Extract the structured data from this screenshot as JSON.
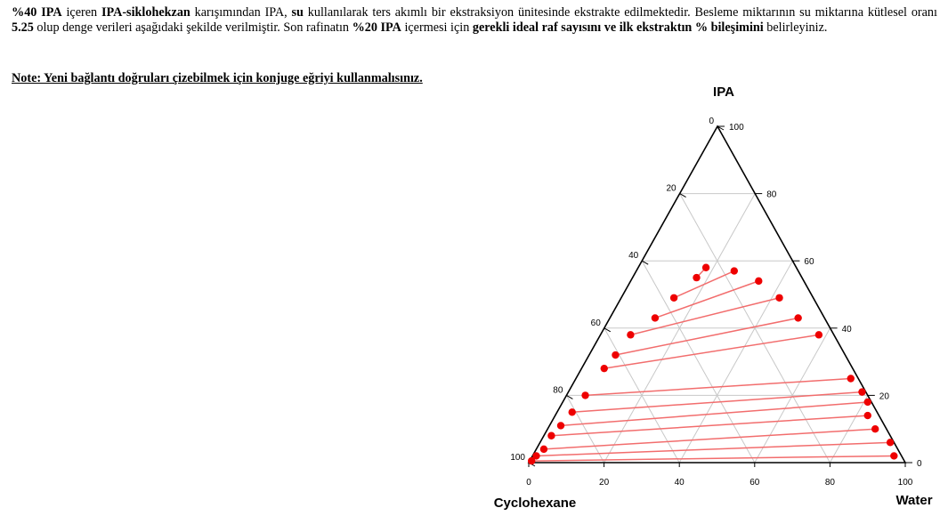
{
  "problem": {
    "s1_strong": "%40 IPA",
    "s2": " içeren ",
    "s3_strong": "IPA-siklohekzan",
    "s4": " karışımından IPA, ",
    "s5_strong": "su",
    "s6": " kullanılarak ters akımlı bir ekstraksiyon ünitesinde ekstrakte edilmektedir. Besleme miktarının su miktarına kütlesel oranı ",
    "s7_strong": "5.25",
    "s8": " olup denge verileri aşağıdaki şekilde verilmiştir. Son rafinatın ",
    "s9_strong": "%20 IPA",
    "s10": " içermesi için ",
    "s11_strong": "gerekli ideal raf sayısını ve ilk ekstraktın % bileşimini",
    "s12": " belirleyiniz."
  },
  "note": "Note: Yeni bağlantı doğruları çizebilmek için konjuge eğriyi kullanmalısınız.",
  "colors": {
    "tie_line": "#f26d6d",
    "point": "#ee0000",
    "grid": "#c8c8c8",
    "axis": "#000000"
  },
  "chart_data": {
    "type": "ternary",
    "components": [
      "IPA",
      "Cyclohexane",
      "Water"
    ],
    "vertex_labels": {
      "top": "IPA",
      "left": "Cyclohexane",
      "right": "Water"
    },
    "left_edge_ticks": [
      "0",
      "20",
      "40",
      "60",
      "80",
      "100"
    ],
    "right_edge_ticks": [
      "100",
      "80",
      "60",
      "40",
      "20",
      "0"
    ],
    "bottom_edge_ticks": [
      "0",
      "20",
      "40",
      "60",
      "80",
      "100"
    ],
    "tie_lines_description": "Each tie line connects a cyclohexane-rich raffinate point (left) to a water-rich extract point (right); values are mass % [IPA, Water]",
    "tie_lines": [
      {
        "raffinate": [
          0.5,
          0.5
        ],
        "extract": [
          2,
          96
        ]
      },
      {
        "raffinate": [
          2,
          1
        ],
        "extract": [
          6,
          93
        ]
      },
      {
        "raffinate": [
          4,
          2
        ],
        "extract": [
          10,
          87
        ]
      },
      {
        "raffinate": [
          8,
          2
        ],
        "extract": [
          14,
          83
        ]
      },
      {
        "raffinate": [
          11,
          3
        ],
        "extract": [
          18,
          81
        ]
      },
      {
        "raffinate": [
          15,
          4
        ],
        "extract": [
          21,
          78
        ]
      },
      {
        "raffinate": [
          20,
          5
        ],
        "extract": [
          25,
          73
        ]
      },
      {
        "raffinate": [
          28,
          6
        ],
        "extract": [
          38,
          58
        ]
      },
      {
        "raffinate": [
          32,
          7
        ],
        "extract": [
          43,
          50
        ]
      },
      {
        "raffinate": [
          38,
          8
        ],
        "extract": [
          49,
          42
        ]
      },
      {
        "raffinate": [
          43,
          12
        ],
        "extract": [
          54,
          34
        ]
      },
      {
        "raffinate": [
          49,
          14
        ],
        "extract": [
          57,
          26
        ]
      },
      {
        "raffinate": [
          55,
          17
        ],
        "extract": [
          58,
          18
        ]
      }
    ]
  }
}
